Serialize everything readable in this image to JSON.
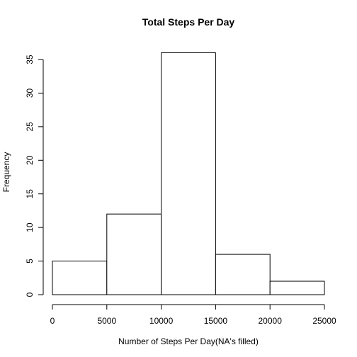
{
  "chart_data": {
    "type": "bar",
    "title": "Total Steps Per Day",
    "xlabel": "Number of Steps Per Day(NA's filled)",
    "ylabel": "Frequency",
    "bins": [
      {
        "from": 0,
        "to": 5000,
        "count": 5
      },
      {
        "from": 5000,
        "to": 10000,
        "count": 12
      },
      {
        "from": 10000,
        "to": 15000,
        "count": 36
      },
      {
        "from": 15000,
        "to": 20000,
        "count": 6
      },
      {
        "from": 20000,
        "to": 25000,
        "count": 2
      }
    ],
    "xlim": [
      0,
      25000
    ],
    "ylim": [
      0,
      35
    ],
    "x_ticks": [
      0,
      5000,
      10000,
      15000,
      20000,
      25000
    ],
    "x_tick_labels": [
      "0",
      "5000",
      "10000",
      "15000",
      "20000",
      "25000"
    ],
    "y_ticks": [
      0,
      5,
      10,
      15,
      20,
      25,
      30,
      35
    ],
    "y_tick_labels": [
      "0",
      "5",
      "10",
      "15",
      "20",
      "25",
      "30",
      "35"
    ],
    "grid": false,
    "bar_fill": "#ffffff",
    "bar_stroke": "#000000"
  }
}
